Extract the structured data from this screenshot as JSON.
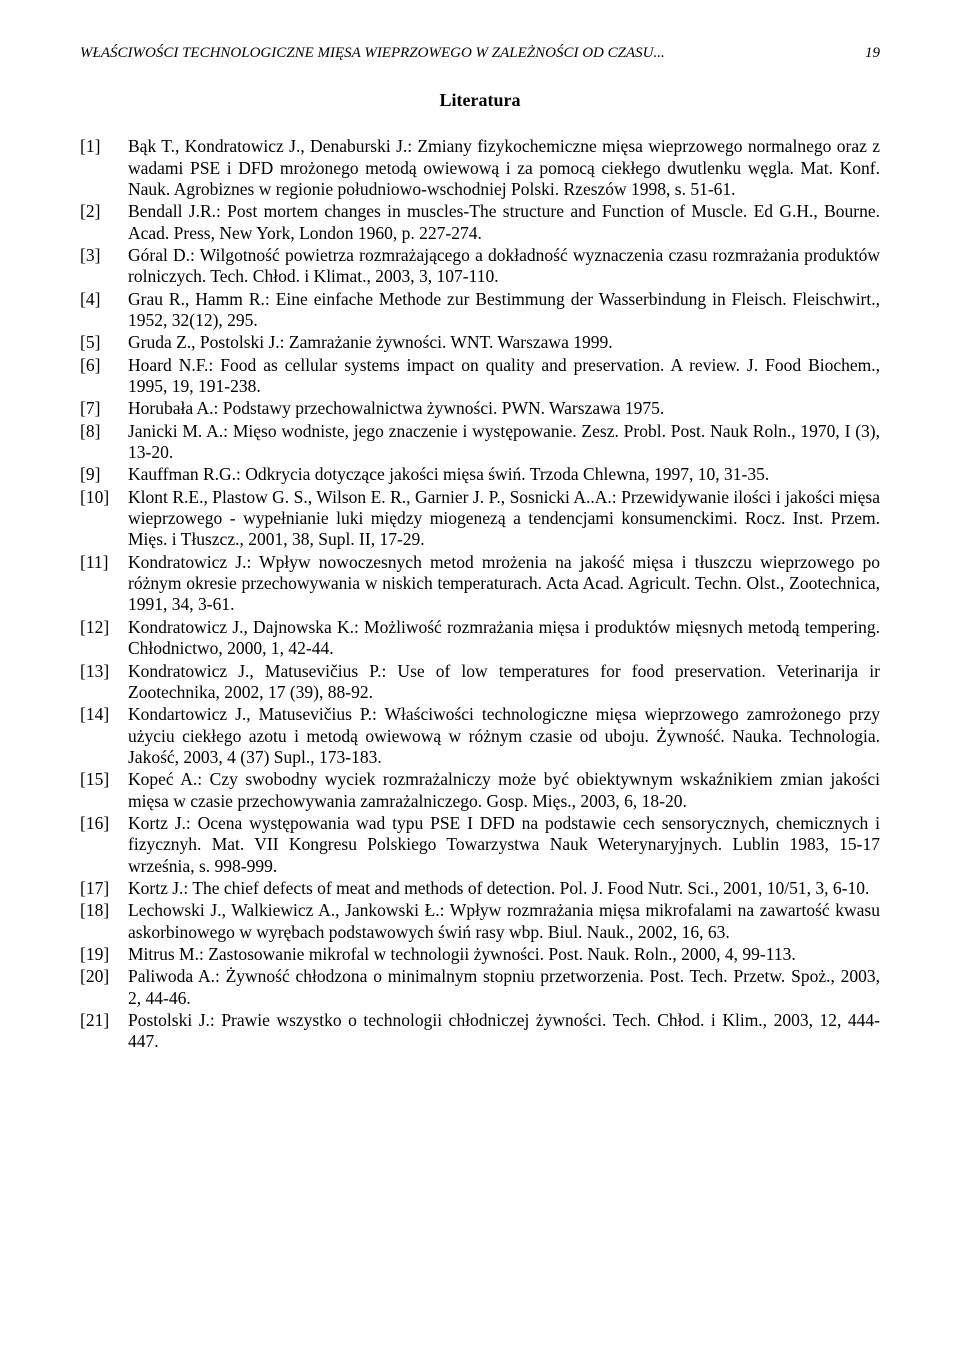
{
  "running_head": {
    "title": "WŁAŚCIWOŚCI TECHNOLOGICZNE MIĘSA WIEPRZOWEGO W ZALEŻNOŚCI OD CZASU...",
    "page_number": "19"
  },
  "section_title": "Literatura",
  "references": [
    {
      "num": "[1]",
      "text": "Bąk T., Kondratowicz J., Denaburski J.: Zmiany fizykochemiczne mięsa wieprzowego normalnego oraz z wadami PSE i DFD mrożonego metodą owiewową i za pomocą ciekłego dwutlenku węgla. Mat. Konf. Nauk. Agrobiznes w regionie południowo-wschodniej Polski. Rzeszów 1998, s. 51-61."
    },
    {
      "num": "[2]",
      "text": "Bendall J.R.: Post mortem changes in muscles-The structure and Function of Muscle. Ed G.H., Bourne. Acad. Press, New York, London 1960, p. 227-274."
    },
    {
      "num": "[3]",
      "text": "Góral D.: Wilgotność powietrza rozmrażającego a dokładność wyznaczenia czasu rozmrażania produktów rolniczych. Tech. Chłod. i Klimat., 2003, 3, 107-110."
    },
    {
      "num": "[4]",
      "text": "Grau R., Hamm R.: Eine einfache Methode zur Bestimmung der Wasserbindung in Fleisch. Fleischwirt., 1952, 32(12), 295."
    },
    {
      "num": "[5]",
      "text": "Gruda Z., Postolski J.: Zamrażanie żywności. WNT. Warszawa 1999."
    },
    {
      "num": "[6]",
      "text": "Hoard N.F.: Food as cellular systems impact on quality and preservation. A review. J. Food Biochem., 1995, 19, 191-238."
    },
    {
      "num": "[7]",
      "text": "Horubała A.: Podstawy przechowalnictwa żywności. PWN. Warszawa 1975."
    },
    {
      "num": "[8]",
      "text": "Janicki M. A.: Mięso wodniste, jego znaczenie i występowanie. Zesz. Probl. Post. Nauk Roln., 1970, I (3), 13-20."
    },
    {
      "num": "[9]",
      "text": "Kauffman R.G.: Odkrycia dotyczące jakości mięsa świń. Trzoda Chlewna, 1997, 10, 31-35."
    },
    {
      "num": "[10]",
      "text": "Klont R.E., Plastow G. S., Wilson E. R., Garnier J. P., Sosnicki A..A.: Przewidywanie ilości i jakości mięsa wieprzowego - wypełnianie luki między miogenezą a tendencjami konsumenckimi. Rocz. Inst. Przem. Mięs. i Tłuszcz., 2001, 38, Supl. II, 17-29."
    },
    {
      "num": "[11]",
      "text": "Kondratowicz J.: Wpływ nowoczesnych metod mrożenia na jakość mięsa i tłuszczu wieprzowego po różnym okresie przechowywania w niskich temperaturach. Acta Acad. Agricult. Techn. Olst., Zootechnica, 1991, 34, 3-61."
    },
    {
      "num": "[12]",
      "text": "Kondratowicz J., Dajnowska K.: Możliwość rozmrażania mięsa i produktów mięsnych metodą tempering. Chłodnictwo, 2000, 1, 42-44."
    },
    {
      "num": "[13]",
      "text": "Kondratowicz J., Matusevičius P.: Use of low temperatures for food preservation. Veterinarija ir Zootechnika, 2002, 17 (39), 88-92."
    },
    {
      "num": "[14]",
      "text": "Kondartowicz J., Matusevičius P.: Właściwości technologiczne mięsa wieprzowego zamrożonego przy użyciu ciekłego azotu i metodą owiewową w różnym czasie od uboju. Żywność. Nauka. Technologia. Jakość, 2003, 4 (37) Supl., 173-183."
    },
    {
      "num": "[15]",
      "text": "Kopeć A.: Czy swobodny wyciek rozmrażalniczy może być obiektywnym wskaźnikiem zmian jakości mięsa w czasie przechowywania zamrażalniczego. Gosp. Mięs., 2003, 6, 18-20."
    },
    {
      "num": "[16]",
      "text": "Kortz J.: Ocena występowania wad typu PSE I DFD na podstawie cech sensorycznych, chemicznych i fizycznyh. Mat. VII Kongresu Polskiego Towarzystwa Nauk Weterynaryjnych. Lublin 1983, 15-17 września, s. 998-999."
    },
    {
      "num": "[17]",
      "text": "Kortz J.: The chief defects of meat and methods of detection. Pol. J. Food Nutr. Sci., 2001, 10/51, 3, 6-10."
    },
    {
      "num": "[18]",
      "text": "Lechowski J., Walkiewicz A., Jankowski Ł.: Wpływ rozmrażania mięsa mikrofalami na zawartość kwasu askorbinowego w wyrębach podstawowych świń rasy wbp. Biul. Nauk., 2002, 16, 63."
    },
    {
      "num": "[19]",
      "text": "Mitrus M.: Zastosowanie mikrofal w technologii żywności. Post. Nauk. Roln., 2000, 4, 99-113."
    },
    {
      "num": "[20]",
      "text": "Paliwoda A.: Żywność chłodzona o minimalnym stopniu przetworzenia. Post. Tech. Przetw. Spoż., 2003, 2, 44-46."
    },
    {
      "num": "[21]",
      "text": "Postolski J.: Prawie wszystko o technologii chłodniczej żywności. Tech. Chłod. i Klim., 2003, 12, 444-447."
    }
  ]
}
